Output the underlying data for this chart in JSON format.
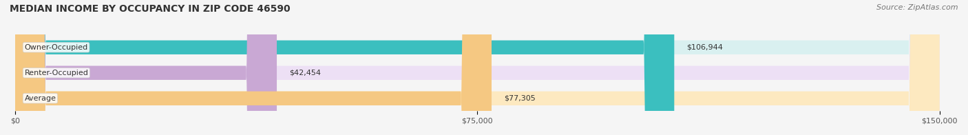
{
  "title": "MEDIAN INCOME BY OCCUPANCY IN ZIP CODE 46590",
  "source": "Source: ZipAtlas.com",
  "categories": [
    "Owner-Occupied",
    "Renter-Occupied",
    "Average"
  ],
  "values": [
    106944,
    42454,
    77305
  ],
  "labels": [
    "$106,944",
    "$42,454",
    "$77,305"
  ],
  "bar_colors": [
    "#3bbfbf",
    "#c9a8d4",
    "#f5c882"
  ],
  "bar_bg_colors": [
    "#d9f0f0",
    "#ede0f5",
    "#fde9c0"
  ],
  "xlim": [
    0,
    150000
  ],
  "xticks": [
    0,
    75000,
    150000
  ],
  "xtick_labels": [
    "$0",
    "$75,000",
    "$150,000"
  ],
  "title_fontsize": 10,
  "source_fontsize": 8,
  "label_fontsize": 8,
  "tick_fontsize": 8,
  "bar_height": 0.55,
  "background_color": "#f5f5f5",
  "bar_bg_color_global": "#e8e8e8",
  "grid_color": "#cccccc"
}
